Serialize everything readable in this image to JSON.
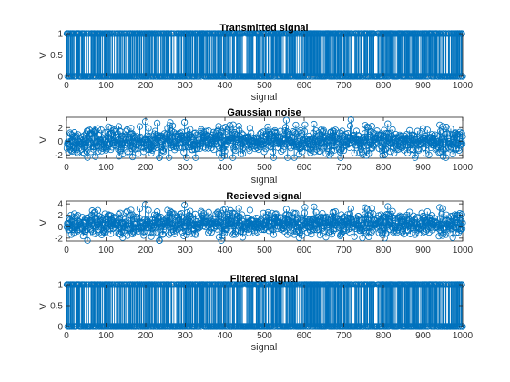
{
  "figure": {
    "background": "#ffffff",
    "series_color": "#0072bd",
    "axis_color": "#262626"
  },
  "chart_data": [
    {
      "type": "stem",
      "title": "Transmitted signal",
      "xlabel": "signal",
      "ylabel": "V",
      "xlim": [
        0,
        1000
      ],
      "ylim": [
        0,
        1
      ],
      "xticks": [
        "0",
        "100",
        "200",
        "300",
        "400",
        "500",
        "600",
        "700",
        "800",
        "900",
        "1000"
      ],
      "yticks": [
        "0",
        "0.5",
        "1"
      ],
      "series": [
        {
          "n_samples": 1000,
          "values": [
            0,
            1
          ],
          "distribution": "random binary"
        }
      ]
    },
    {
      "type": "stem",
      "title": "Gaussian noise",
      "xlabel": "signal",
      "ylabel": "V",
      "xlim": [
        0,
        1000
      ],
      "ylim": [
        -2.5,
        3.5
      ],
      "xticks": [
        "0",
        "100",
        "200",
        "300",
        "400",
        "500",
        "600",
        "700",
        "800",
        "900",
        "1000"
      ],
      "yticks": [
        "-2",
        "0",
        "2"
      ],
      "series": [
        {
          "n_samples": 1000,
          "distribution": "gaussian noise",
          "approx_mean": 0,
          "approx_std": 1
        }
      ]
    },
    {
      "type": "stem",
      "title": "Recieved signal",
      "xlabel": "",
      "ylabel": "V",
      "xlim": [
        0,
        1000
      ],
      "ylim": [
        -2.5,
        4.5
      ],
      "xticks": [
        "0",
        "100",
        "200",
        "300",
        "400",
        "500",
        "600",
        "700",
        "800",
        "900",
        "1000"
      ],
      "yticks": [
        "-2",
        "0",
        "2",
        "4"
      ],
      "series": [
        {
          "n_samples": 1000,
          "distribution": "binary signal plus gaussian noise",
          "approx_mean": 0.5,
          "approx_std": 1
        }
      ]
    },
    {
      "type": "stem",
      "title": "Filtered signal",
      "xlabel": "signal",
      "ylabel": "V",
      "xlim": [
        0,
        1000
      ],
      "ylim": [
        0,
        1
      ],
      "xticks": [
        "0",
        "100",
        "200",
        "300",
        "400",
        "500",
        "600",
        "700",
        "800",
        "900",
        "1000"
      ],
      "yticks": [
        "0",
        "0.5",
        "1"
      ],
      "series": [
        {
          "n_samples": 1000,
          "values": [
            0,
            1
          ],
          "distribution": "random binary"
        }
      ]
    }
  ]
}
